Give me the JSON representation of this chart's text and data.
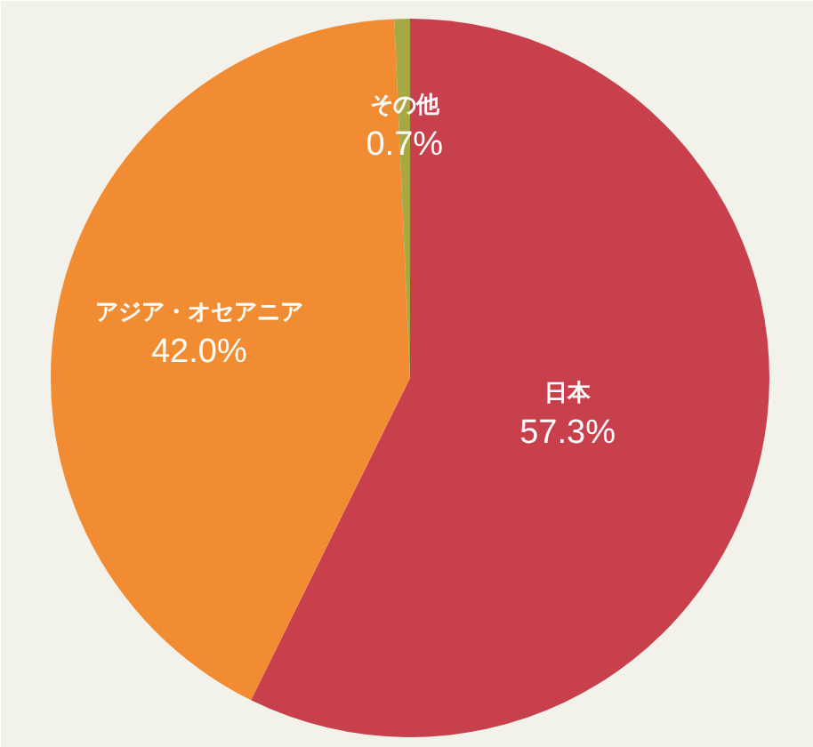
{
  "chart_data": {
    "type": "pie",
    "categories": [
      "日本",
      "アジア・オセアニア",
      "その他"
    ],
    "values": [
      57.3,
      42.0,
      0.7
    ],
    "colors": [
      "#c8404c",
      "#f28c33",
      "#a8a842"
    ],
    "value_labels": [
      "57.3%",
      "42.0%",
      "0.7%"
    ]
  }
}
